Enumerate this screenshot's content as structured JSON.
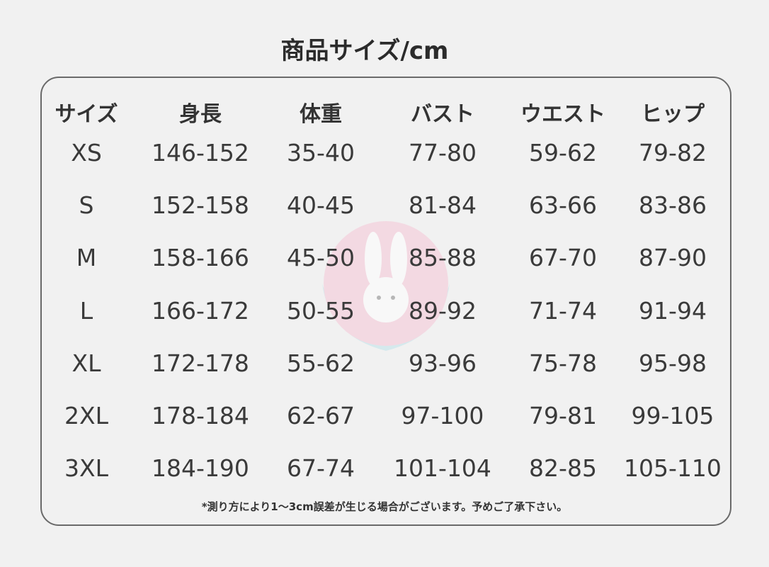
{
  "title": "商品サイズ/cm",
  "headers": [
    "サイズ",
    "身長",
    "体重",
    "バスト",
    "ウエスト",
    "ヒップ"
  ],
  "rows": [
    [
      "XS",
      "146-152",
      "35-40",
      "77-80",
      "59-62",
      "79-82"
    ],
    [
      "S",
      "152-158",
      "40-45",
      "81-84",
      "63-66",
      "83-86"
    ],
    [
      "M",
      "158-166",
      "45-50",
      "85-88",
      "67-70",
      "87-90"
    ],
    [
      "L",
      "166-172",
      "50-55",
      "89-92",
      "71-74",
      "91-94"
    ],
    [
      "XL",
      "172-178",
      "55-62",
      "93-96",
      "75-78",
      "95-98"
    ],
    [
      "2XL",
      "178-184",
      "62-67",
      "97-100",
      "79-81",
      "99-105"
    ],
    [
      "3XL",
      "184-190",
      "67-74",
      "101-104",
      "82-85",
      "105-110"
    ]
  ],
  "note": "*測り方により1～3cm誤差が生じる場合がございます。予めご了承下さい。",
  "watermark": {
    "icon": "rabbit-logo",
    "colors": {
      "circle": "#f6c6d6",
      "wave": "#bfe3ea"
    }
  }
}
